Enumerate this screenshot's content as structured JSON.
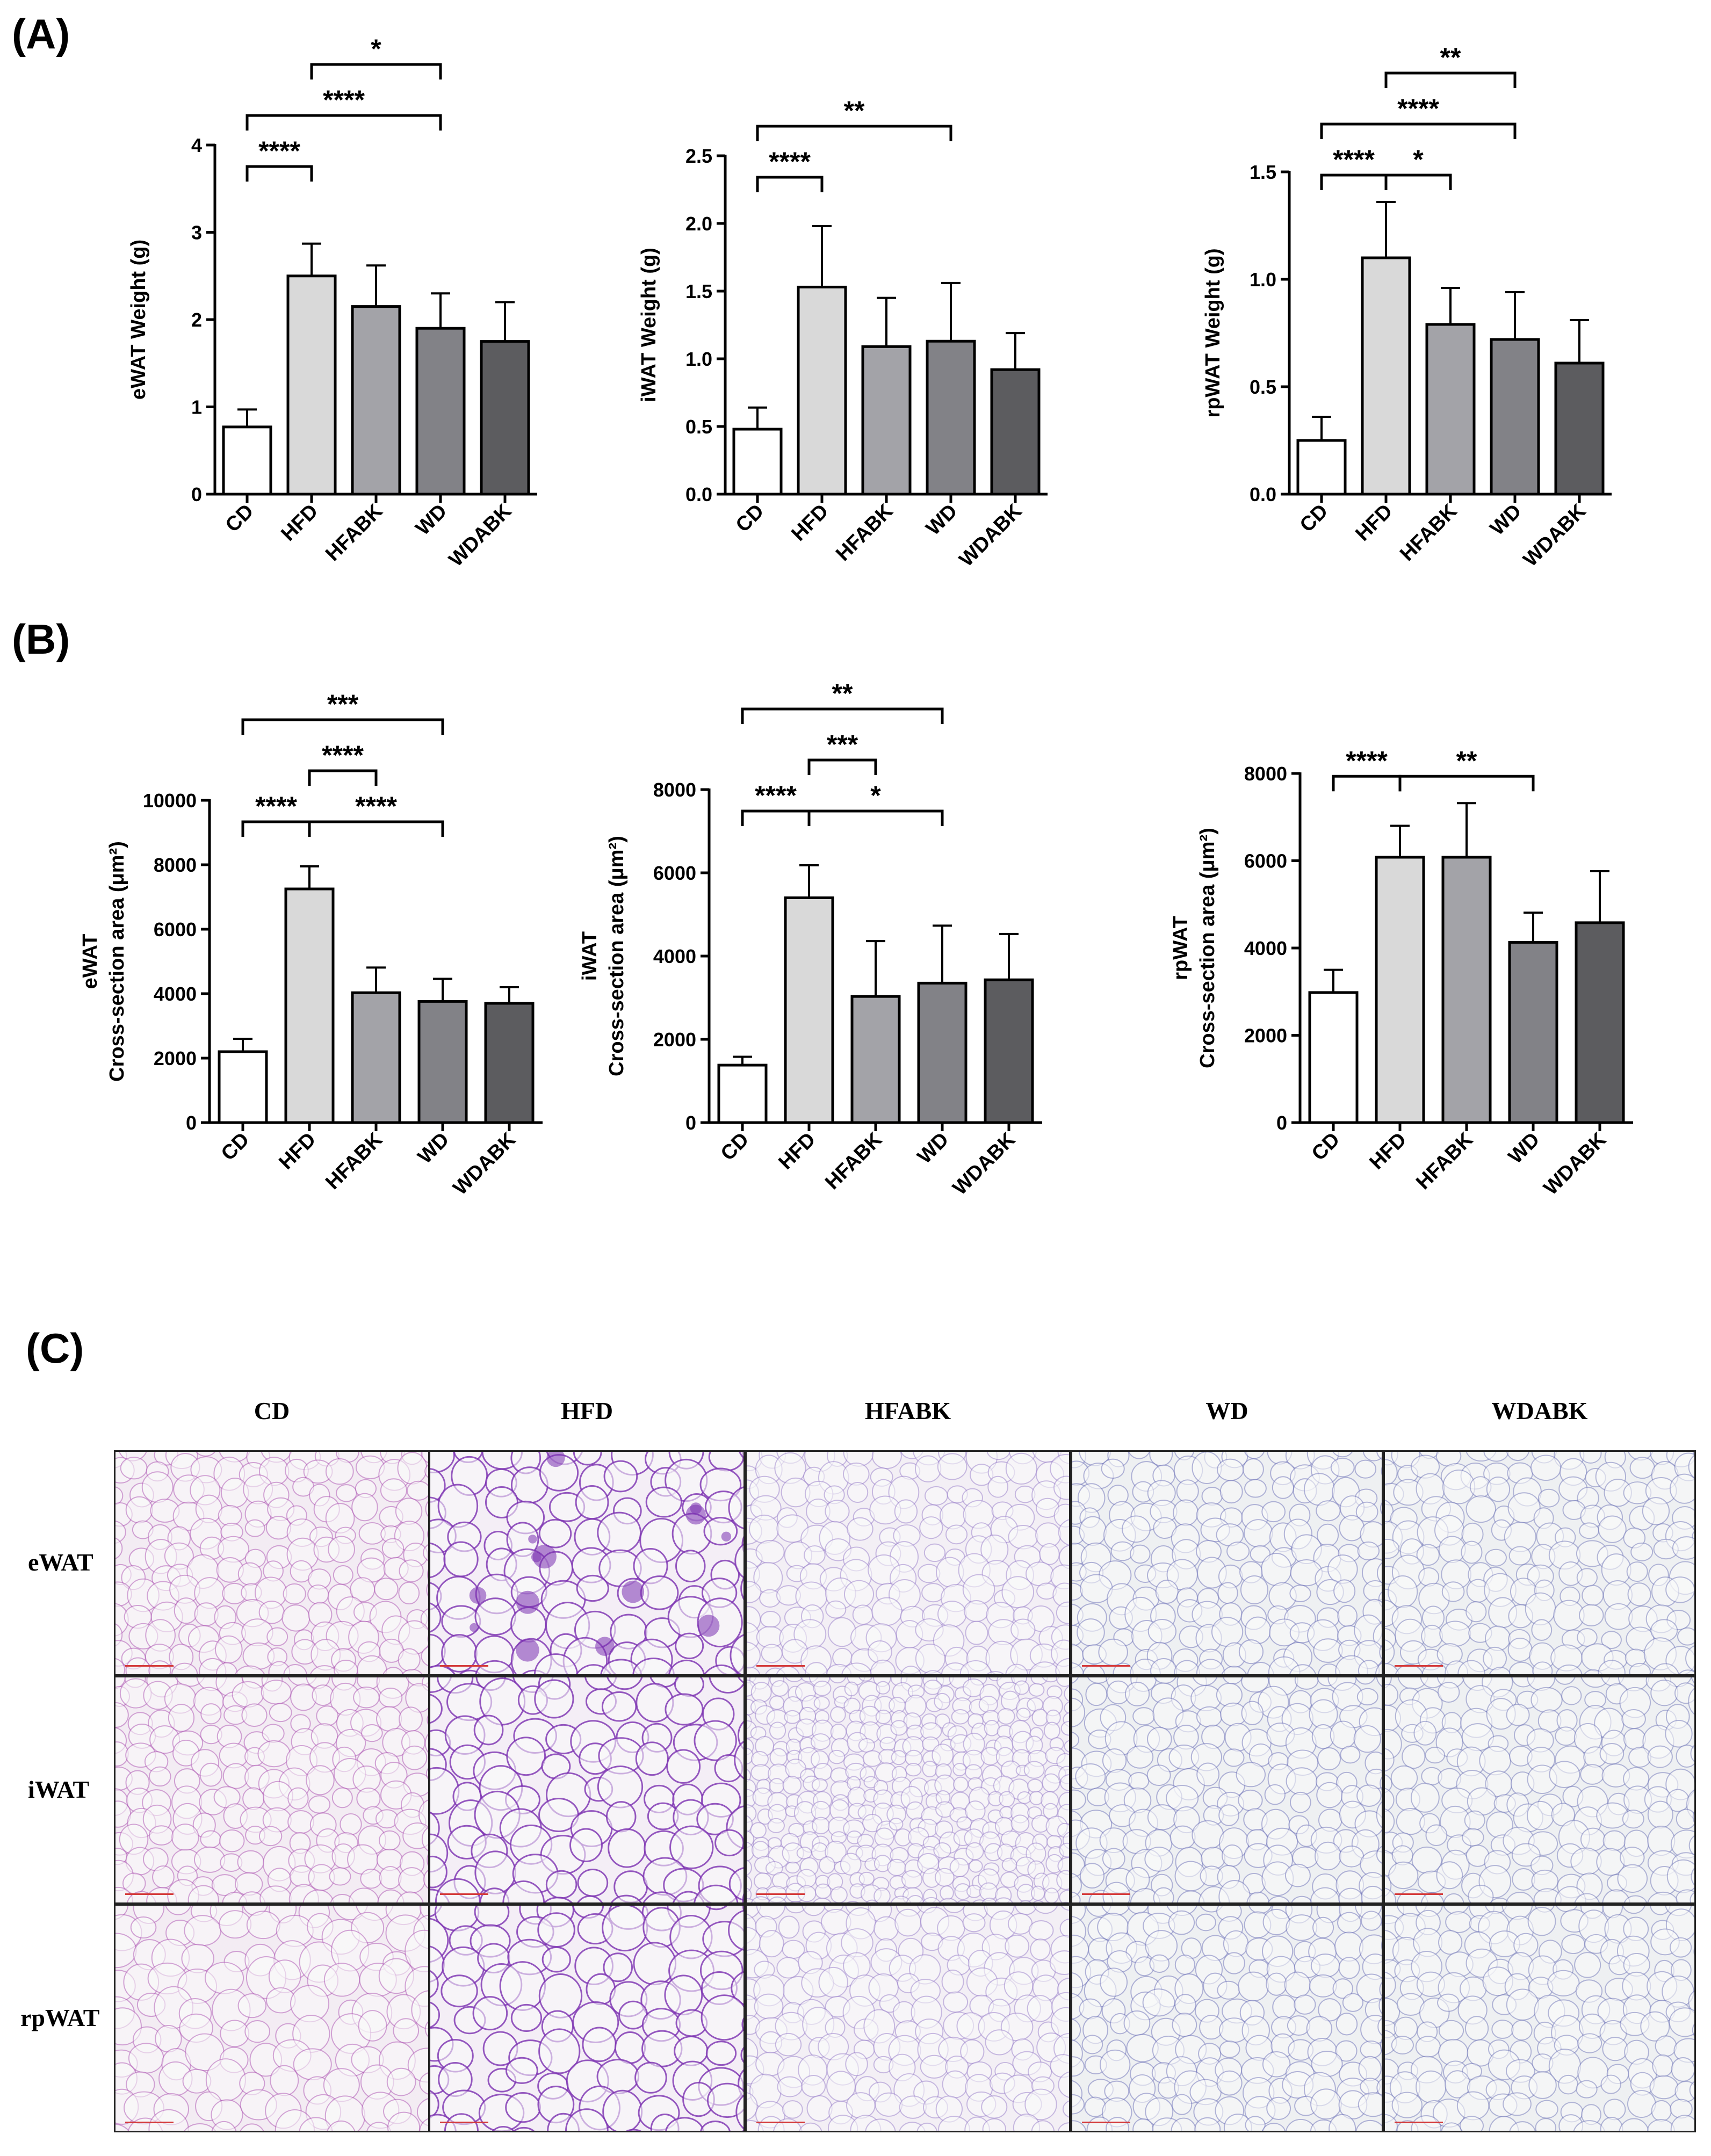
{
  "panel_labels": {
    "a": "(A)",
    "b": "(B)",
    "c": "(C)"
  },
  "colors": {
    "CD": "#ffffff",
    "HFD": "#d9d9d9",
    "HFABK": "#a3a3a8",
    "WD": "#828287",
    "WDABK": "#5c5c5f"
  },
  "chart_data": [
    {
      "type": "bar",
      "panel": "A",
      "categories": [
        "CD",
        "HFD",
        "HFABK",
        "WD",
        "WDABK"
      ],
      "values": [
        0.77,
        2.5,
        2.15,
        1.9,
        1.75
      ],
      "errors": [
        0.2,
        0.37,
        0.47,
        0.4,
        0.45
      ],
      "ylabel": "eWAT Weight (g)",
      "ylim": [
        0,
        4
      ],
      "yticks": [
        "0",
        "1",
        "2",
        "3",
        "4"
      ],
      "yticks_values": [
        0,
        1,
        2,
        3,
        4
      ],
      "significance": [
        {
          "from": 0,
          "to": 1,
          "label": "****",
          "level": 0
        },
        {
          "from": 0,
          "to": 3,
          "label": "****",
          "level": 1
        },
        {
          "from": 1,
          "to": 3,
          "label": "*",
          "level": 2
        }
      ]
    },
    {
      "type": "bar",
      "panel": "A",
      "categories": [
        "CD",
        "HFD",
        "HFABK",
        "WD",
        "WDABK"
      ],
      "values": [
        0.48,
        1.53,
        1.09,
        1.13,
        0.92
      ],
      "errors": [
        0.16,
        0.45,
        0.36,
        0.43,
        0.27
      ],
      "ylabel": "iWAT Weight (g)",
      "ylim": [
        0,
        2.5
      ],
      "yticks": [
        "0.0",
        "0.5",
        "1.0",
        "1.5",
        "2.0",
        "2.5"
      ],
      "yticks_values": [
        0,
        0.5,
        1,
        1.5,
        2,
        2.5
      ],
      "significance": [
        {
          "from": 0,
          "to": 1,
          "label": "****",
          "level": 0
        },
        {
          "from": 0,
          "to": 3,
          "label": "**",
          "level": 1
        }
      ]
    },
    {
      "type": "bar",
      "panel": "A",
      "categories": [
        "CD",
        "HFD",
        "HFABK",
        "WD",
        "WDABK"
      ],
      "values": [
        0.25,
        1.1,
        0.79,
        0.72,
        0.61
      ],
      "errors": [
        0.11,
        0.26,
        0.17,
        0.22,
        0.2
      ],
      "ylabel": "rpWAT Weight (g)",
      "ylim": [
        0,
        1.5
      ],
      "yticks": [
        "0.0",
        "0.5",
        "1.0",
        "1.5"
      ],
      "yticks_values": [
        0,
        0.5,
        1,
        1.5
      ],
      "significance": [
        {
          "from": 0,
          "to": 1,
          "label": "****",
          "level": 0
        },
        {
          "from": 1,
          "to": 2,
          "label": "*",
          "level": 0
        },
        {
          "from": 0,
          "to": 3,
          "label": "****",
          "level": 1
        },
        {
          "from": 1,
          "to": 3,
          "label": "**",
          "level": 2
        }
      ]
    },
    {
      "type": "bar",
      "panel": "B",
      "categories": [
        "CD",
        "HFD",
        "HFABK",
        "WD",
        "WDABK"
      ],
      "values": [
        2200,
        7250,
        4030,
        3760,
        3700
      ],
      "errors": [
        400,
        700,
        780,
        700,
        500
      ],
      "ylabel_line1": "eWAT",
      "ylabel_line2": "Cross-section area (μm²)",
      "ylim": [
        0,
        10000
      ],
      "yticks": [
        "0",
        "2000",
        "4000",
        "6000",
        "8000",
        "10000"
      ],
      "yticks_values": [
        0,
        2000,
        4000,
        6000,
        8000,
        10000
      ],
      "significance": [
        {
          "from": 0,
          "to": 1,
          "label": "****",
          "level": 0
        },
        {
          "from": 1,
          "to": 3,
          "label": "****",
          "level": 0
        },
        {
          "from": 1,
          "to": 2,
          "label": "****",
          "level": 1
        },
        {
          "from": 0,
          "to": 3,
          "label": "***",
          "level": 2
        }
      ]
    },
    {
      "type": "bar",
      "panel": "B",
      "categories": [
        "CD",
        "HFD",
        "HFABK",
        "WD",
        "WDABK"
      ],
      "values": [
        1380,
        5400,
        3030,
        3350,
        3430
      ],
      "errors": [
        200,
        780,
        1330,
        1380,
        1100
      ],
      "ylabel_line1": "iWAT",
      "ylabel_line2": "Cross-section area (μm²)",
      "ylim": [
        0,
        8000
      ],
      "yticks": [
        "0",
        "2000",
        "4000",
        "6000",
        "8000"
      ],
      "yticks_values": [
        0,
        2000,
        4000,
        6000,
        8000
      ],
      "significance": [
        {
          "from": 0,
          "to": 1,
          "label": "****",
          "level": 0
        },
        {
          "from": 1,
          "to": 3,
          "label": "*",
          "level": 0
        },
        {
          "from": 1,
          "to": 2,
          "label": "***",
          "level": 1
        },
        {
          "from": 0,
          "to": 3,
          "label": "**",
          "level": 2
        }
      ]
    },
    {
      "type": "bar",
      "panel": "B",
      "categories": [
        "CD",
        "HFD",
        "HFABK",
        "WD",
        "WDABK"
      ],
      "values": [
        2980,
        6080,
        6080,
        4130,
        4580
      ],
      "errors": [
        520,
        720,
        1240,
        680,
        1180
      ],
      "ylabel_line1": "rpWAT",
      "ylabel_line2": "Cross-section area (μm²)",
      "ylim": [
        0,
        8000
      ],
      "yticks": [
        "0",
        "2000",
        "4000",
        "6000",
        "8000"
      ],
      "yticks_values": [
        0,
        2000,
        4000,
        6000,
        8000
      ],
      "significance": [
        {
          "from": 0,
          "to": 1,
          "label": "****",
          "level": 0
        },
        {
          "from": 1,
          "to": 3,
          "label": "**",
          "level": 0
        }
      ]
    }
  ],
  "histology": {
    "columns": [
      "CD",
      "HFD",
      "HFABK",
      "WD",
      "WDABK"
    ],
    "rows": [
      "eWAT",
      "iWAT",
      "rpWAT"
    ],
    "stain_colors": [
      "#a13fa8",
      "#7a2fb0",
      "#8b6fc4",
      "#5b5fb0",
      "#6066b0"
    ],
    "background_colors": [
      "#f3ecf3",
      "#f4eef6",
      "#f3eff5",
      "#eef0f2",
      "#eef0f2"
    ]
  }
}
